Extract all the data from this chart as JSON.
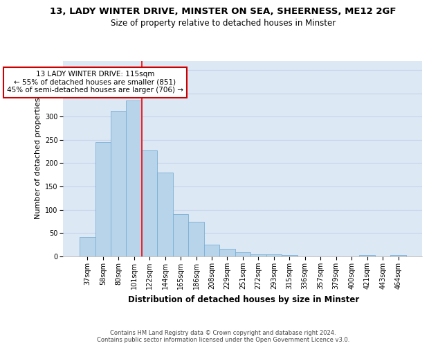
{
  "title1": "13, LADY WINTER DRIVE, MINSTER ON SEA, SHEERNESS, ME12 2GF",
  "title2": "Size of property relative to detached houses in Minster",
  "xlabel": "Distribution of detached houses by size in Minster",
  "ylabel": "Number of detached properties",
  "categories": [
    "37sqm",
    "58sqm",
    "80sqm",
    "101sqm",
    "122sqm",
    "144sqm",
    "165sqm",
    "186sqm",
    "208sqm",
    "229sqm",
    "251sqm",
    "272sqm",
    "293sqm",
    "315sqm",
    "336sqm",
    "357sqm",
    "379sqm",
    "400sqm",
    "421sqm",
    "443sqm",
    "464sqm"
  ],
  "values": [
    42,
    245,
    312,
    335,
    228,
    180,
    90,
    75,
    25,
    17,
    9,
    4,
    4,
    3,
    0,
    0,
    0,
    0,
    3,
    0,
    3
  ],
  "bar_color": "#b8d4ea",
  "bar_edge_color": "#7aafd4",
  "red_line_index": 4.0,
  "annotation_line1": "13 LADY WINTER DRIVE: 115sqm",
  "annotation_line2": "← 55% of detached houses are smaller (851)",
  "annotation_line3": "45% of semi-detached houses are larger (706) →",
  "annotation_box_facecolor": "#ffffff",
  "annotation_box_edgecolor": "#cc0000",
  "ylim": [
    0,
    420
  ],
  "yticks": [
    0,
    50,
    100,
    150,
    200,
    250,
    300,
    350,
    400
  ],
  "grid_color": "#c8d4e8",
  "axes_bg_color": "#dde8f5",
  "fig_bg_color": "#ffffff",
  "footer_line1": "Contains HM Land Registry data © Crown copyright and database right 2024.",
  "footer_line2": "Contains public sector information licensed under the Open Government Licence v3.0.",
  "title1_fontsize": 9.5,
  "title2_fontsize": 8.5,
  "xlabel_fontsize": 8.5,
  "ylabel_fontsize": 8,
  "tick_fontsize": 7,
  "annotation_fontsize": 7.5,
  "footer_fontsize": 6
}
